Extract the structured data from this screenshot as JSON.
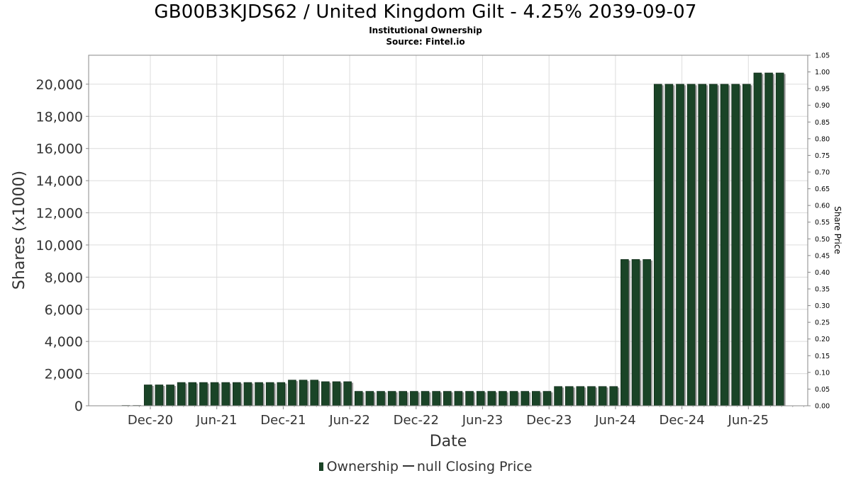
{
  "chart_data": {
    "type": "bar",
    "title": "GB00B3KJDS62 / United Kingdom Gilt - 4.25% 2039-09-07",
    "subtitle": "Institutional Ownership",
    "source": "Source: Fintel.io",
    "xlabel": "Date",
    "ylabel": "Shares (x1000)",
    "y2label": "Share Price",
    "ylim": [
      0,
      21800
    ],
    "y2lim": [
      0,
      1.05
    ],
    "yticks": [
      "0",
      "2,000",
      "4,000",
      "6,000",
      "8,000",
      "10,000",
      "12,000",
      "14,000",
      "16,000",
      "18,000",
      "20,000"
    ],
    "y2ticks": [
      "0.00",
      "0.05",
      "0.10",
      "0.15",
      "0.20",
      "0.25",
      "0.30",
      "0.35",
      "0.40",
      "0.45",
      "0.50",
      "0.55",
      "0.60",
      "0.65",
      "0.70",
      "0.75",
      "0.80",
      "0.85",
      "0.90",
      "0.95",
      "1.00",
      "1.05"
    ],
    "xticks": [
      "Dec-20",
      "Jun-21",
      "Dec-21",
      "Jun-22",
      "Dec-22",
      "Jun-23",
      "Dec-23",
      "Jun-24",
      "Dec-24",
      "Jun-25"
    ],
    "series": [
      {
        "name": "Ownership",
        "values": [
          20,
          20,
          1300,
          1300,
          1300,
          1450,
          1450,
          1450,
          1450,
          1450,
          1450,
          1450,
          1450,
          1450,
          1450,
          1600,
          1600,
          1600,
          1500,
          1500,
          1500,
          900,
          900,
          900,
          900,
          900,
          900,
          900,
          900,
          900,
          900,
          900,
          900,
          900,
          900,
          900,
          900,
          900,
          900,
          1200,
          1200,
          1200,
          1200,
          1200,
          1200,
          9100,
          9100,
          9100,
          20000,
          20000,
          20000,
          20000,
          20000,
          20000,
          20000,
          20000,
          20000,
          20700,
          20700,
          20700
        ]
      }
    ],
    "legend": [
      {
        "label": "Ownership"
      },
      {
        "label": "null Closing Price"
      }
    ],
    "grid": true,
    "legend_position": "bottom"
  }
}
